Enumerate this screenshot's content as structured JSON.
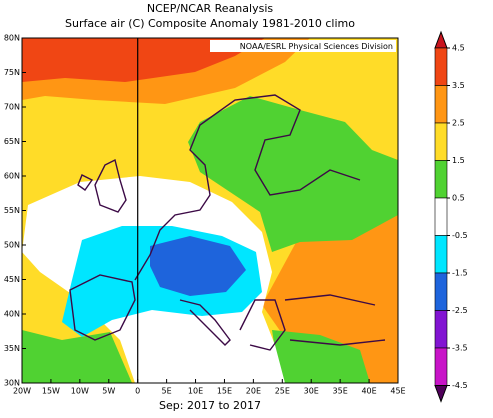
{
  "header": {
    "title": "NCEP/NCAR Reanalysis",
    "subtitle": "Surface air (C) Composite Anomaly 1981-2010 climo"
  },
  "map": {
    "credit": "NOAA/ESRL Physical Sciences Division",
    "x_labels": [
      "20W",
      "15W",
      "10W",
      "5W",
      "0",
      "5E",
      "10E",
      "15E",
      "20E",
      "25E",
      "30E",
      "35E",
      "40E",
      "45E"
    ],
    "y_labels": [
      "30N",
      "35N",
      "40N",
      "45N",
      "50N",
      "55N",
      "60N",
      "65N",
      "70N",
      "75N",
      "80N"
    ],
    "footer": "Sep: 2017 to 2017"
  },
  "colorbar": {
    "labels": [
      4.5,
      3.5,
      2.5,
      1.5,
      0.5,
      -0.5,
      -1.5,
      -2.5,
      -3.5,
      -4.5
    ],
    "colors": [
      "#c8141e",
      "#f04614",
      "#ff9614",
      "#ffdc28",
      "#50d232",
      "#ffffff",
      "#00e6ff",
      "#1e64dc",
      "#8214d2",
      "#c814c8",
      "#50005a"
    ]
  }
}
